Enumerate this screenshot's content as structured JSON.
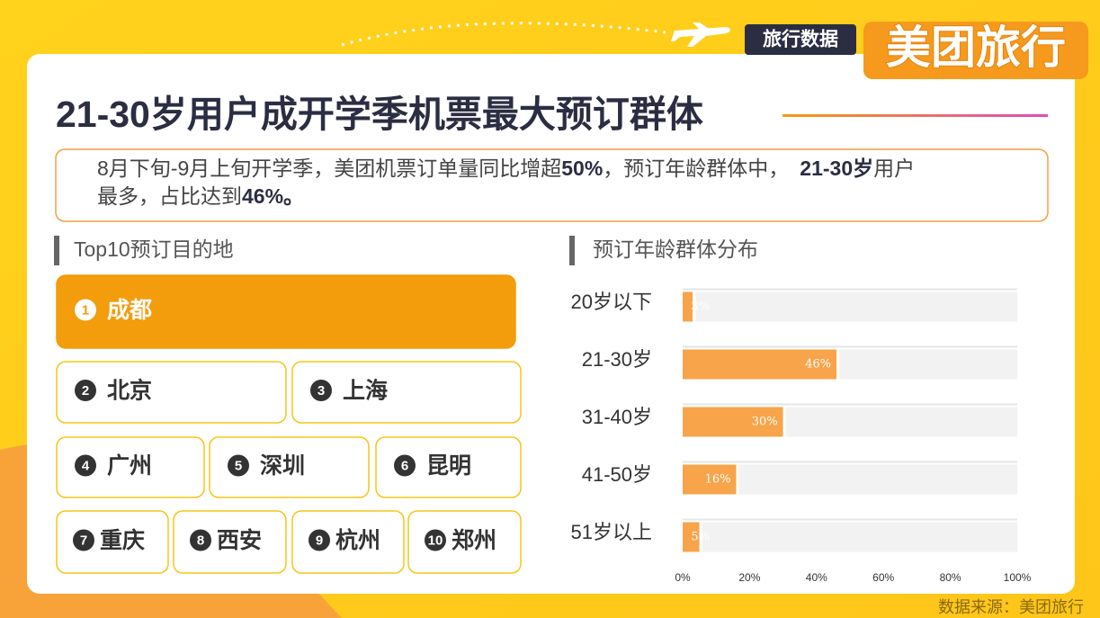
{
  "header": {
    "tag": "旅行数据",
    "logo": "美团旅行"
  },
  "title": "21-30岁用户成开学季机票最大预订群体",
  "description": {
    "line1": [
      "8月下旬-9月上旬开学季，美团机票订单量同比增超",
      "50%",
      "，预订年龄群体中，",
      "21-30岁",
      "用户"
    ],
    "line2": [
      "最多，占比达到",
      "46%。"
    ]
  },
  "destinations": {
    "title": "Top10预订目的地",
    "items": [
      {
        "rank": 1,
        "name": "成都"
      },
      {
        "rank": 2,
        "name": "北京"
      },
      {
        "rank": 3,
        "name": "上海"
      },
      {
        "rank": 4,
        "name": "广州"
      },
      {
        "rank": 5,
        "name": "深圳"
      },
      {
        "rank": 6,
        "name": "昆明"
      },
      {
        "rank": 7,
        "name": "重庆"
      },
      {
        "rank": 8,
        "name": "西安"
      },
      {
        "rank": 9,
        "name": "杭州"
      },
      {
        "rank": 10,
        "name": "郑州"
      }
    ]
  },
  "chart_data": {
    "type": "bar",
    "title": "预订年龄群体分布",
    "categories": [
      "20岁以下",
      "21-30岁",
      "31-40岁",
      "41-50岁",
      "51岁以上"
    ],
    "values": [
      3,
      46,
      30,
      16,
      5
    ],
    "value_labels": [
      "3%",
      "46%",
      "30%",
      "16%",
      "5%"
    ],
    "color": "#f7a44a",
    "xlim": [
      0,
      100
    ],
    "xticks": [
      {
        "value": 0,
        "label": "0%"
      },
      {
        "value": 20,
        "label": "20%"
      },
      {
        "value": 40,
        "label": "40%"
      },
      {
        "value": 60,
        "label": "60%"
      },
      {
        "value": 80,
        "label": "80%"
      },
      {
        "value": 100,
        "label": "100%"
      }
    ]
  },
  "source": "数据来源：美团旅行"
}
